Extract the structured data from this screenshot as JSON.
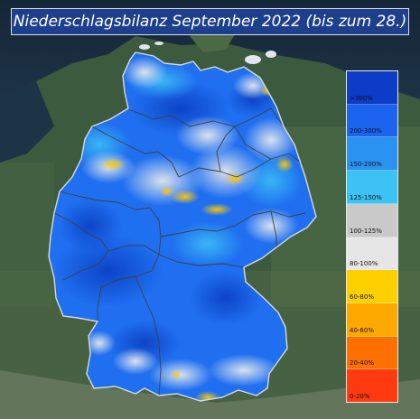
{
  "title": "Niederschlagsbilanz September 2022 (bis zum 28.)",
  "legend": [
    {
      "label": ">300%",
      "color": "#0c3cc8"
    },
    {
      "label": "200-300%",
      "color": "#1a64f0"
    },
    {
      "label": "150-200%",
      "color": "#2a93f2"
    },
    {
      "label": "125-150%",
      "color": "#3dc2f5"
    },
    {
      "label": "100-125%",
      "color": "#c9c9c9"
    },
    {
      "label": "80-100%",
      "color": "#e6e6e6"
    },
    {
      "label": "60-80%",
      "color": "#ffd000"
    },
    {
      "label": "40-60%",
      "color": "#ffa800"
    },
    {
      "label": "20-40%",
      "color": "#ff7000"
    },
    {
      "label": "0-20%",
      "color": "#ff3a10"
    }
  ]
}
